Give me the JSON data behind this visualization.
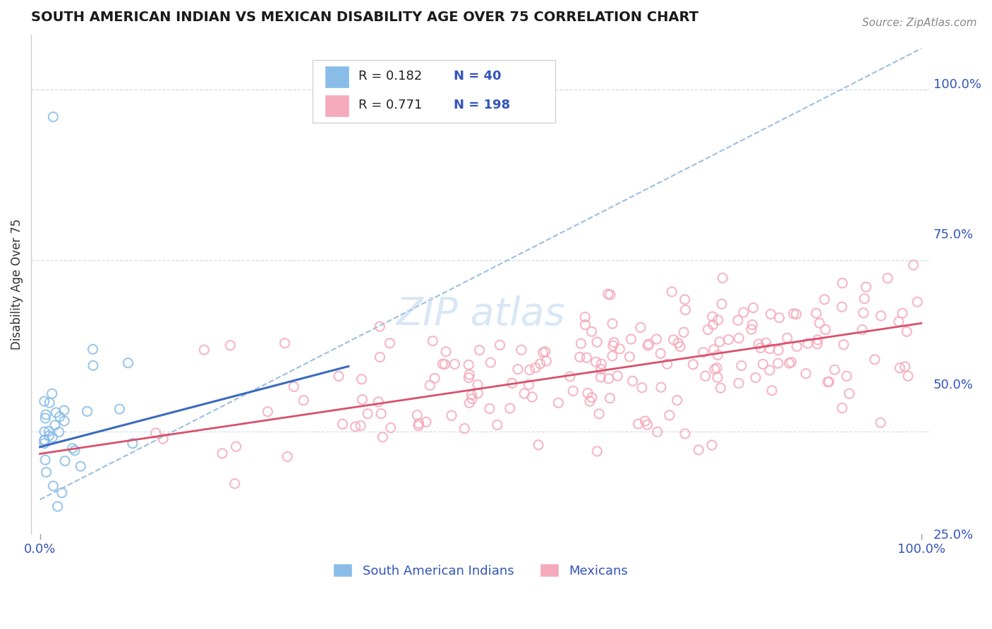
{
  "title": "SOUTH AMERICAN INDIAN VS MEXICAN DISABILITY AGE OVER 75 CORRELATION CHART",
  "source": "Source: ZipAtlas.com",
  "ylabel": "Disability Age Over 75",
  "legend_blue_R": "0.182",
  "legend_blue_N": "40",
  "legend_pink_R": "0.771",
  "legend_pink_N": "198",
  "legend_label_blue": "South American Indians",
  "legend_label_pink": "Mexicans",
  "blue_dot_color": "#89bde8",
  "pink_dot_color": "#f5aabb",
  "blue_line_color": "#3b6abf",
  "pink_line_color": "#d9506a",
  "dashed_line_color": "#90b8e0",
  "title_color": "#1a1a1a",
  "source_color": "#888888",
  "legend_text_color": "#222222",
  "legend_value_color": "#3355bb",
  "axis_color": "#3355bb",
  "grid_color": "#d0dde8",
  "watermark_color": "#c0d8ef",
  "xlim": [
    -0.01,
    1.01
  ],
  "ylim": [
    0.35,
    1.08
  ],
  "ytick_positions": [
    0.5,
    0.75,
    1.0
  ],
  "ytick_labels": [
    "50.0%",
    "75.0%",
    "100.0%"
  ],
  "extra_ytick_positions": [
    0.25
  ],
  "extra_ytick_labels": [
    "25.0%"
  ],
  "xtick_labels": [
    "0.0%",
    "100.0%"
  ],
  "xtick_positions": [
    0.0,
    1.0
  ]
}
